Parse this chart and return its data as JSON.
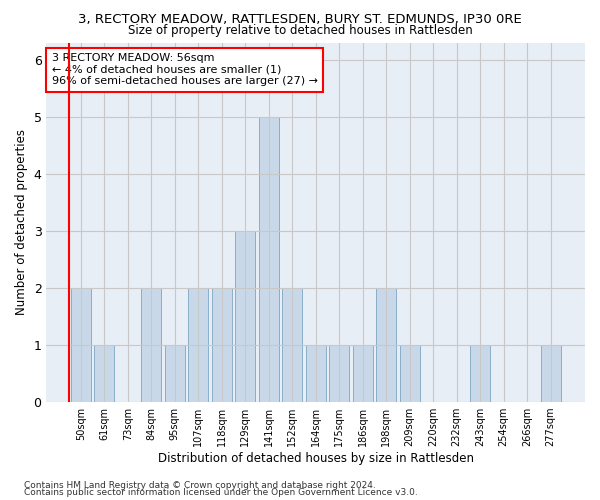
{
  "title": "3, RECTORY MEADOW, RATTLESDEN, BURY ST. EDMUNDS, IP30 0RE",
  "subtitle": "Size of property relative to detached houses in Rattlesden",
  "xlabel": "Distribution of detached houses by size in Rattlesden",
  "ylabel": "Number of detached properties",
  "bar_labels": [
    "50sqm",
    "61sqm",
    "73sqm",
    "84sqm",
    "95sqm",
    "107sqm",
    "118sqm",
    "129sqm",
    "141sqm",
    "152sqm",
    "164sqm",
    "175sqm",
    "186sqm",
    "198sqm",
    "209sqm",
    "220sqm",
    "232sqm",
    "243sqm",
    "254sqm",
    "266sqm",
    "277sqm"
  ],
  "bar_values": [
    2,
    1,
    0,
    2,
    1,
    2,
    2,
    3,
    5,
    2,
    1,
    1,
    1,
    2,
    1,
    0,
    0,
    1,
    0,
    0,
    1
  ],
  "bar_color": "#c8d8e8",
  "bar_edge_color": "#8aafc8",
  "annotation_text": "3 RECTORY MEADOW: 56sqm\n← 4% of detached houses are smaller (1)\n96% of semi-detached houses are larger (27) →",
  "annotation_box_color": "white",
  "annotation_box_edge_color": "red",
  "subject_line_color": "red",
  "ylim": [
    0,
    6.3
  ],
  "yticks": [
    0,
    1,
    2,
    3,
    4,
    5,
    6
  ],
  "grid_color": "#c8c8c8",
  "bg_color": "white",
  "ax_bg_color": "#e8eef5",
  "footnote1": "Contains HM Land Registry data © Crown copyright and database right 2024.",
  "footnote2": "Contains public sector information licensed under the Open Government Licence v3.0."
}
